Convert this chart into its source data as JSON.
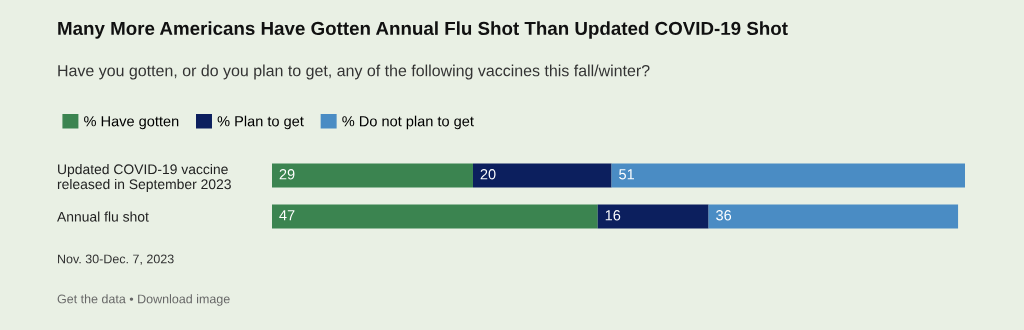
{
  "chart_data": {
    "type": "bar",
    "orientation": "horizontal",
    "stacked": true,
    "title": "Many More Americans Have Gotten Annual Flu Shot Than Updated COVID-19 Shot",
    "subtitle": "Have you gotten, or do you plan to get, any of the following vaccines this fall/winter?",
    "categories": [
      "Updated COVID-19 vaccine\nreleased in September 2023",
      "Annual flu shot"
    ],
    "series": [
      {
        "name": "% Have gotten",
        "color": "#3b8450",
        "values": [
          29,
          47
        ]
      },
      {
        "name": "% Plan to get",
        "color": "#0c1f5e",
        "values": [
          20,
          16
        ]
      },
      {
        "name": "% Do not plan to get",
        "color": "#4a8cc4",
        "values": [
          51,
          36
        ]
      }
    ],
    "data_labels": true,
    "legend": "top",
    "tick_labels": "y",
    "grid": false,
    "annotations": [
      "Nov. 30-Dec. 7, 2023",
      "Get the data • Download image"
    ]
  }
}
